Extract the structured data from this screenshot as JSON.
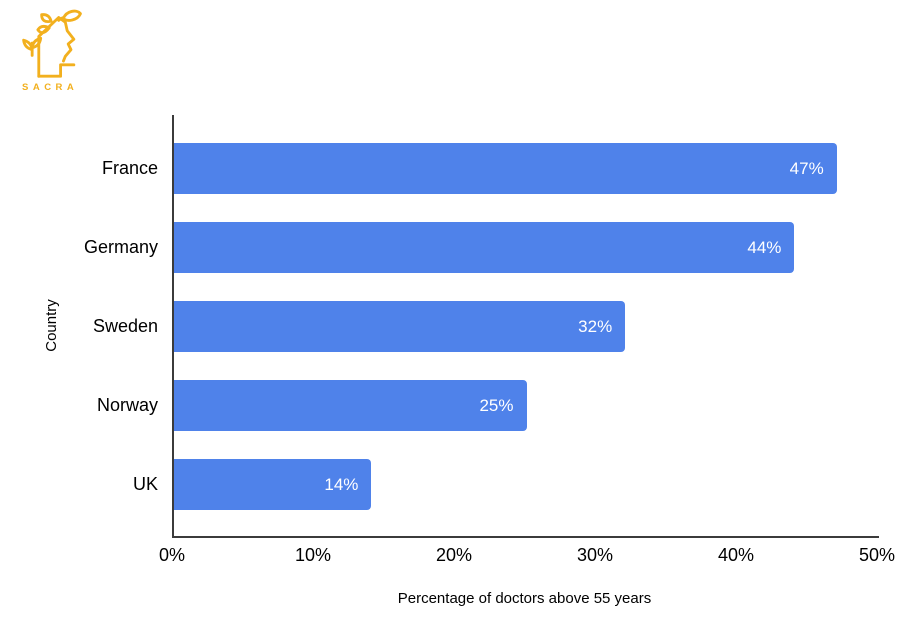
{
  "logo": {
    "brand": "SACRA",
    "color": "#F2B01E",
    "icon": "head-with-plant-icon"
  },
  "chart_data": {
    "type": "bar",
    "orientation": "horizontal",
    "title": "",
    "categories": [
      "France",
      "Germany",
      "Sweden",
      "Norway",
      "UK"
    ],
    "values": [
      47,
      44,
      32,
      25,
      14
    ],
    "value_labels": [
      "47%",
      "44%",
      "32%",
      "25%",
      "14%"
    ],
    "xlabel": "Percentage of doctors above 55 years",
    "ylabel": "Country",
    "xlim": [
      0,
      50
    ],
    "xticks": [
      0,
      10,
      20,
      30,
      40,
      50
    ],
    "xtick_labels": [
      "0%",
      "10%",
      "20%",
      "30%",
      "40%",
      "50%"
    ],
    "grid": false,
    "legend": false,
    "bar_color": "#4F82EA",
    "value_label_color": "#FFFFFF",
    "axis_color": "#3B3B3B",
    "text_color": "#000000"
  }
}
